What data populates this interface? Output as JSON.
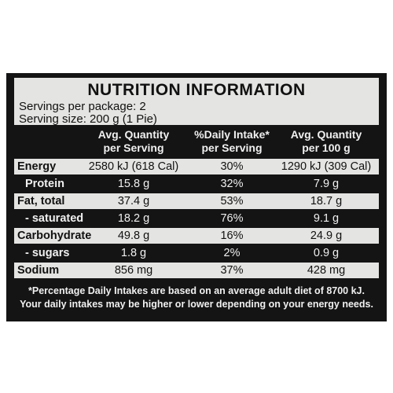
{
  "title": "NUTRITION INFORMATION",
  "servings": [
    "Servings per package: 2",
    "Serving size: 200 g (1 Pie)"
  ],
  "table": {
    "headers": [
      [
        "Avg. Quantity",
        "per Serving"
      ],
      [
        "%Daily Intake*",
        "per Serving"
      ],
      [
        "Avg. Quantity",
        "per 100 g"
      ]
    ],
    "rows": [
      [
        "Energy",
        "2580 kJ (618 Cal)",
        "30%",
        "1290 kJ (309 Cal)"
      ],
      [
        "Protein",
        "15.8 g",
        "32%",
        "7.9 g"
      ],
      [
        "Fat, total",
        "37.4 g",
        "53%",
        "18.7 g"
      ],
      [
        "- saturated",
        "18.2 g",
        "76%",
        "9.1 g"
      ],
      [
        "Carbohydrate",
        "49.8 g",
        "16%",
        "24.9 g"
      ],
      [
        "- sugars",
        "1.8 g",
        "2%",
        "0.9 g"
      ],
      [
        "Sodium",
        "856 mg",
        "37%",
        "428 mg"
      ]
    ]
  },
  "footnote": [
    "*Percentage Daily Intakes are based on an average adult diet of 8700 kJ.",
    "Your daily intakes may be higher or lower depending on your energy needs."
  ]
}
